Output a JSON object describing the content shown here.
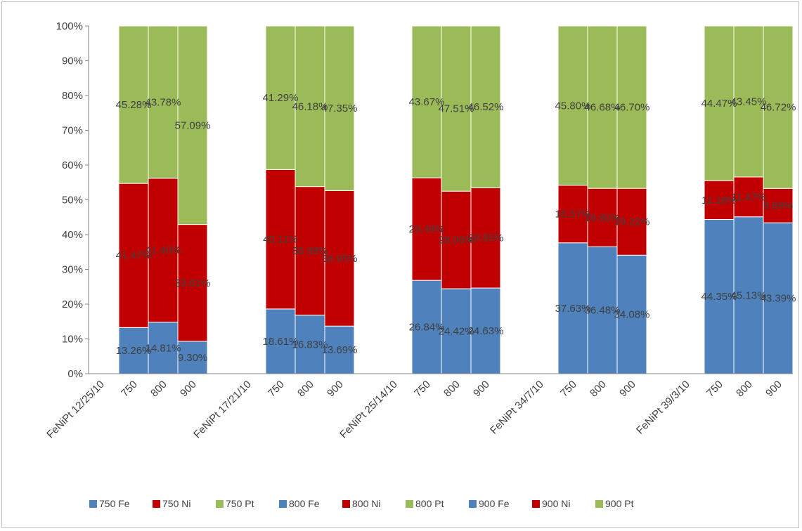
{
  "chart_data": {
    "type": "bar",
    "stacked": "percent",
    "ylim": [
      0,
      100
    ],
    "y_ticks": [
      "0%",
      "10%",
      "20%",
      "30%",
      "40%",
      "50%",
      "60%",
      "70%",
      "80%",
      "90%",
      "100%"
    ],
    "grid": false,
    "legend_position": "bottom",
    "groups": [
      {
        "label": "FeNiPt 12/25/10",
        "bars": [
          {
            "label": "750",
            "Fe": 13.26,
            "Ni": 41.47,
            "Pt": 45.28,
            "Fe_label": "13.26%",
            "Ni_label": "41.47%",
            "Pt_label": "45.28%"
          },
          {
            "label": "800",
            "Fe": 14.81,
            "Ni": 41.4,
            "Pt": 43.78,
            "Fe_label": "14.81%",
            "Ni_label": "41.40%",
            "Pt_label": "43.78%"
          },
          {
            "label": "900",
            "Fe": 9.3,
            "Ni": 33.61,
            "Pt": 57.09,
            "Fe_label": "9.30%",
            "Ni_label": "33.61%",
            "Pt_label": "57.09%"
          }
        ]
      },
      {
        "label": "FeNiPt 17/21/10",
        "bars": [
          {
            "label": "750",
            "Fe": 18.61,
            "Ni": 40.11,
            "Pt": 41.29,
            "Fe_label": "18.61%",
            "Ni_label": "40.11%",
            "Pt_label": "41.29%"
          },
          {
            "label": "800",
            "Fe": 16.83,
            "Ni": 36.98,
            "Pt": 46.18,
            "Fe_label": "16.83%",
            "Ni_label": "36.98%",
            "Pt_label": "46.18%"
          },
          {
            "label": "900",
            "Fe": 13.69,
            "Ni": 38.95,
            "Pt": 47.35,
            "Fe_label": "13.69%",
            "Ni_label": "38.95%",
            "Pt_label": "47.35%"
          }
        ]
      },
      {
        "label": "FeNiPt 25/14/10",
        "bars": [
          {
            "label": "750",
            "Fe": 26.84,
            "Ni": 29.49,
            "Pt": 43.67,
            "Fe_label": "26.84%",
            "Ni_label": "29.49%",
            "Pt_label": "43.67%"
          },
          {
            "label": "800",
            "Fe": 24.42,
            "Ni": 28.06,
            "Pt": 47.51,
            "Fe_label": "24.42%",
            "Ni_label": "28.06%",
            "Pt_label": "47.51%"
          },
          {
            "label": "900",
            "Fe": 24.63,
            "Ni": 28.85,
            "Pt": 46.52,
            "Fe_label": "24.63%",
            "Ni_label": "28.85%",
            "Pt_label": "46.52%"
          }
        ]
      },
      {
        "label": "FeNiPt  34/7/10",
        "bars": [
          {
            "label": "750",
            "Fe": 37.63,
            "Ni": 16.57,
            "Pt": 45.8,
            "Fe_label": "37.63%",
            "Ni_label": "16.57%",
            "Pt_label": "45.80%"
          },
          {
            "label": "800",
            "Fe": 36.48,
            "Ni": 16.8,
            "Pt": 46.68,
            "Fe_label": "36.48%",
            "Ni_label": "16.80%",
            "Pt_label": "46.68%"
          },
          {
            "label": "900",
            "Fe": 34.08,
            "Ni": 19.22,
            "Pt": 46.7,
            "Fe_label": "34.08%",
            "Ni_label": "19.22%",
            "Pt_label": "46.70%"
          }
        ]
      },
      {
        "label": "FeNiPt  39/3/10",
        "bars": [
          {
            "label": "750",
            "Fe": 44.35,
            "Ni": 11.18,
            "Pt": 44.47,
            "Fe_label": "44.35%",
            "Ni_label": "11.18%",
            "Pt_label": "44.47%"
          },
          {
            "label": "800",
            "Fe": 45.13,
            "Ni": 11.47,
            "Pt": 43.45,
            "Fe_label": "45.13%",
            "Ni_label": "11.47%",
            "Pt_label": "43.45%"
          },
          {
            "label": "900",
            "Fe": 43.39,
            "Ni": 9.89,
            "Pt": 46.72,
            "Fe_label": "43.39%",
            "Ni_label": "9.89%",
            "Pt_label": "46.72%"
          }
        ]
      }
    ],
    "components": [
      "Fe",
      "Ni",
      "Pt"
    ],
    "colors": {
      "Fe": "#4f81bd",
      "Ni": "#c00000",
      "Pt": "#9bbb59"
    },
    "legend": [
      {
        "label": "750 Fe",
        "component": "Fe"
      },
      {
        "label": "750 Ni",
        "component": "Ni"
      },
      {
        "label": "750 Pt",
        "component": "Pt"
      },
      {
        "label": "800 Fe",
        "component": "Fe"
      },
      {
        "label": "800 Ni",
        "component": "Ni"
      },
      {
        "label": "800 Pt",
        "component": "Pt"
      },
      {
        "label": "900 Fe",
        "component": "Fe"
      },
      {
        "label": "900 Ni",
        "component": "Ni"
      },
      {
        "label": "900 Pt",
        "component": "Pt"
      }
    ]
  }
}
